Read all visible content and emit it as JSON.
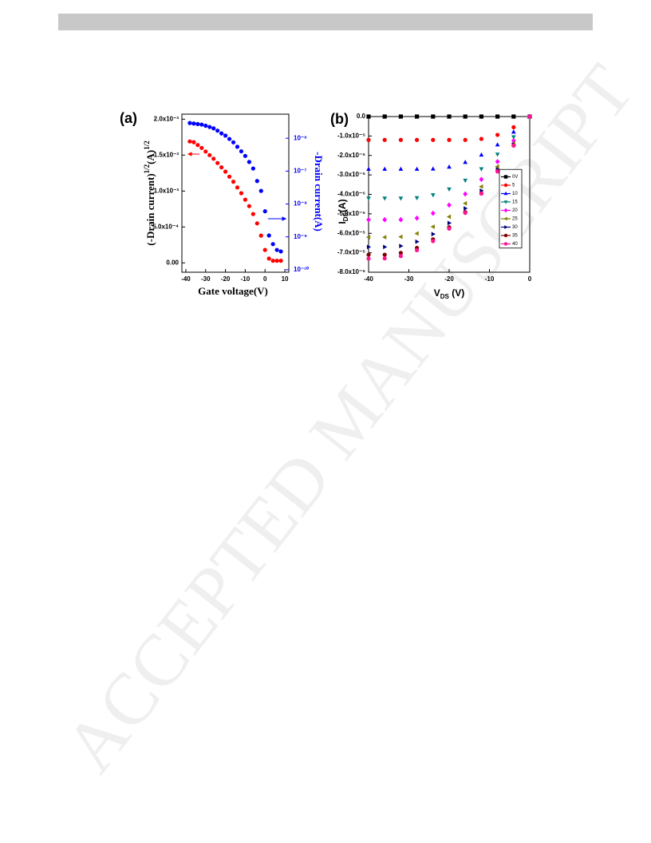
{
  "watermark": "ACCEPTED MANUSCRIPT",
  "chart_data": [
    {
      "type": "scatter",
      "title": "(a)",
      "xlabel": "Gate voltage(V)",
      "ylabel": [
        "(-Drain current)",
        "1/2",
        "(A)",
        "1/2"
      ],
      "y2label": "-Drain current(A)",
      "x": [
        -38,
        -36,
        -34,
        -32,
        -30,
        -28,
        -26,
        -24,
        -22,
        -20,
        -18,
        -16,
        -14,
        -12,
        -10,
        -8,
        -6,
        -4,
        -2,
        0,
        2,
        4,
        6,
        8
      ],
      "xlim": [
        -42,
        12
      ],
      "xticks": [
        -40,
        -30,
        -20,
        -10,
        0,
        10
      ],
      "ylim": [
        -0.00013,
        0.00207
      ],
      "yticks": [
        {
          "value": 0,
          "label": "0.00"
        },
        {
          "value": 0.0005,
          "label": "5.0x10⁻⁴"
        },
        {
          "value": 0.001,
          "label": "1.0x10⁻³"
        },
        {
          "value": 0.0015,
          "label": "1.5x10⁻³"
        },
        {
          "value": 0.002,
          "label": "2.0x10⁻³"
        }
      ],
      "y2scale": "log",
      "y2lim": [
        8.4e-11,
        5.4e-06
      ],
      "y2ticks": [
        {
          "value": 1e-10,
          "label": "10⁻¹⁰"
        },
        {
          "value": 1e-09,
          "label": "10⁻⁹"
        },
        {
          "value": 1e-08,
          "label": "10⁻⁸"
        },
        {
          "value": 1e-07,
          "label": "10⁻⁷"
        },
        {
          "value": 1e-06,
          "label": "10⁻⁶"
        }
      ],
      "y2color": "#0000ff",
      "series": [
        {
          "color": "#ff0000",
          "values": [
            0.00169,
            0.00168,
            0.00164,
            0.0016,
            0.00155,
            0.0015,
            0.00145,
            0.00139,
            0.00133,
            0.00127,
            0.0012,
            0.00113,
            0.00105,
            0.00097,
            0.00088,
            0.00079,
            0.00068,
            0.00055,
            0.00038,
            0.00018,
            6e-05,
            3e-05,
            3e-05,
            3e-05
          ]
        },
        {
          "color": "#0000ff",
          "axis": "y2",
          "values": [
            2.9e-06,
            2.8e-06,
            2.7e-06,
            2.6e-06,
            2.4e-06,
            2.2e-06,
            2e-06,
            1.7e-06,
            1.4e-06,
            1.2e-06,
            9.5e-07,
            7.5e-07,
            5.5e-07,
            4e-07,
            2.9e-07,
            1.9e-07,
            1.2e-07,
            5e-08,
            2.5e-08,
            6e-09,
            1.1e-09,
            6e-10,
            4e-10,
            3.6e-10
          ]
        }
      ]
    },
    {
      "type": "scatter",
      "title": "(b)",
      "xlabel": [
        "V",
        "DS",
        " (V)"
      ],
      "ylabel": [
        "I",
        "DS",
        "(A)"
      ],
      "x": [
        -40,
        -36,
        -32,
        -28,
        -24,
        -20,
        -16,
        -12,
        -8,
        -4,
        0
      ],
      "xlim": [
        -40,
        0
      ],
      "xticks": [
        -40,
        -30,
        -20,
        -10,
        0
      ],
      "ylim": [
        -8e-05,
        0
      ],
      "yticks": [
        {
          "value": 0,
          "label": "0.0"
        },
        {
          "value": -1e-05,
          "label": "-1.0x10⁻⁵"
        },
        {
          "value": -2e-05,
          "label": "-2.0x10⁻⁵"
        },
        {
          "value": -3e-05,
          "label": "-3.0x10⁻⁵"
        },
        {
          "value": -4e-05,
          "label": "-4.0x10⁻⁵"
        },
        {
          "value": -5e-05,
          "label": "-5.0x10⁻⁵"
        },
        {
          "value": -6e-05,
          "label": "-6.0x10⁻⁵"
        },
        {
          "value": -7e-05,
          "label": "-7.0x10⁻⁵"
        },
        {
          "value": -8e-05,
          "label": "-8.0x10⁻⁵"
        }
      ],
      "legend": "center right",
      "series": [
        {
          "name": "0V",
          "color": "#000000",
          "marker": "square",
          "values": [
            0,
            0,
            0,
            0,
            0,
            0,
            0,
            0,
            0,
            0,
            0
          ]
        },
        {
          "name": "5",
          "color": "#ff0000",
          "marker": "circle",
          "values": [
            -1.2e-05,
            -1.2e-05,
            -1.2e-05,
            -1.2e-05,
            -1.2e-05,
            -1.2e-05,
            -1.2e-05,
            -1.15e-05,
            -9.4e-06,
            -5.5e-06,
            0
          ]
        },
        {
          "name": "10",
          "color": "#0000ff",
          "marker": "triangle",
          "values": [
            -2.7e-05,
            -2.7e-05,
            -2.7e-05,
            -2.7e-05,
            -2.69e-05,
            -2.59e-05,
            -2.35e-05,
            -1.97e-05,
            -1.45e-05,
            -7.9e-06,
            0
          ]
        },
        {
          "name": "15",
          "color": "#008080",
          "marker": "triangle-down",
          "values": [
            -4.2e-05,
            -4.2e-05,
            -4.2e-05,
            -4.18e-05,
            -4.03e-05,
            -3.73e-05,
            -3.28e-05,
            -2.69e-05,
            -1.94e-05,
            -1.05e-05,
            0
          ]
        },
        {
          "name": "20",
          "color": "#ff00ff",
          "marker": "diamond",
          "values": [
            -5.3e-05,
            -5.3e-05,
            -5.3e-05,
            -5.22e-05,
            -4.97e-05,
            -4.55e-05,
            -3.98e-05,
            -3.23e-05,
            -2.32e-05,
            -1.24e-05,
            0
          ]
        },
        {
          "name": "25",
          "color": "#808000",
          "marker": "triangle-left",
          "values": [
            -6.2e-05,
            -6.2e-05,
            -6.18e-05,
            -6.01e-05,
            -5.66e-05,
            -5.15e-05,
            -4.46e-05,
            -3.6e-05,
            -2.57e-05,
            -1.38e-05,
            0
          ]
        },
        {
          "name": "30",
          "color": "#000080",
          "marker": "triangle-right",
          "values": [
            -6.7e-05,
            -6.7e-05,
            -6.65e-05,
            -6.43e-05,
            -6.04e-05,
            -5.47e-05,
            -4.72e-05,
            -3.81e-05,
            -2.71e-05,
            -1.44e-05,
            0
          ]
        },
        {
          "name": "35",
          "color": "#800000",
          "values": [
            -7.1e-05,
            -7.1e-05,
            -7.01e-05,
            -6.75e-05,
            -6.31e-05,
            -5.69e-05,
            -4.91e-05,
            -3.95e-05,
            -2.8e-05,
            -1.49e-05,
            0
          ]
        },
        {
          "name": "40",
          "color": "#ff1493",
          "values": [
            -7.3e-05,
            -7.29e-05,
            -7.17e-05,
            -6.87e-05,
            -6.4e-05,
            -5.76e-05,
            -4.95e-05,
            -3.96e-05,
            -2.82e-05,
            -1.49e-05,
            0
          ]
        }
      ]
    }
  ]
}
